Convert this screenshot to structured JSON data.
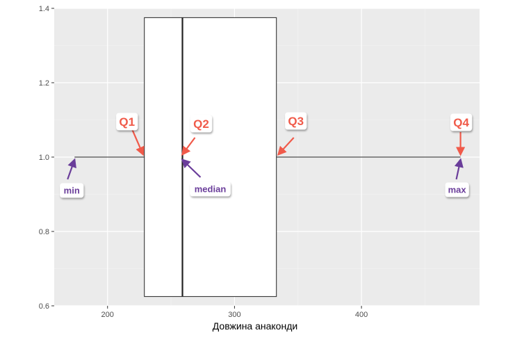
{
  "chart_data": {
    "type": "boxplot",
    "orientation": "horizontal",
    "xlabel": "Довжина анаконди",
    "ylabel": "",
    "xlim": [
      158,
      493
    ],
    "ylim": [
      0.6,
      1.4
    ],
    "xticks": [
      200,
      300,
      400
    ],
    "yticks": [
      0.6,
      0.8,
      1.0,
      1.2,
      1.4
    ],
    "ytick_labels": [
      "0.6",
      "0.8",
      "1.0",
      "1.2",
      "1.4"
    ],
    "box": {
      "min": 174,
      "q1": 229,
      "median": 259,
      "q3": 333,
      "max": 478,
      "y_center": 1.0,
      "y_lower": 0.625,
      "y_upper": 1.375
    },
    "grid": true,
    "background": "#ebebeb",
    "annotations": [
      {
        "label": "Q1",
        "color": "#f05a4a",
        "points_to": "q1"
      },
      {
        "label": "Q2",
        "color": "#f05a4a",
        "points_to": "median"
      },
      {
        "label": "Q3",
        "color": "#f05a4a",
        "points_to": "q3"
      },
      {
        "label": "Q4",
        "color": "#f05a4a",
        "points_to": "max"
      },
      {
        "label": "min",
        "color": "#6a3d9a",
        "points_to": "min"
      },
      {
        "label": "median",
        "color": "#6a3d9a",
        "points_to": "median"
      },
      {
        "label": "max",
        "color": "#6a3d9a",
        "points_to": "max"
      }
    ]
  }
}
